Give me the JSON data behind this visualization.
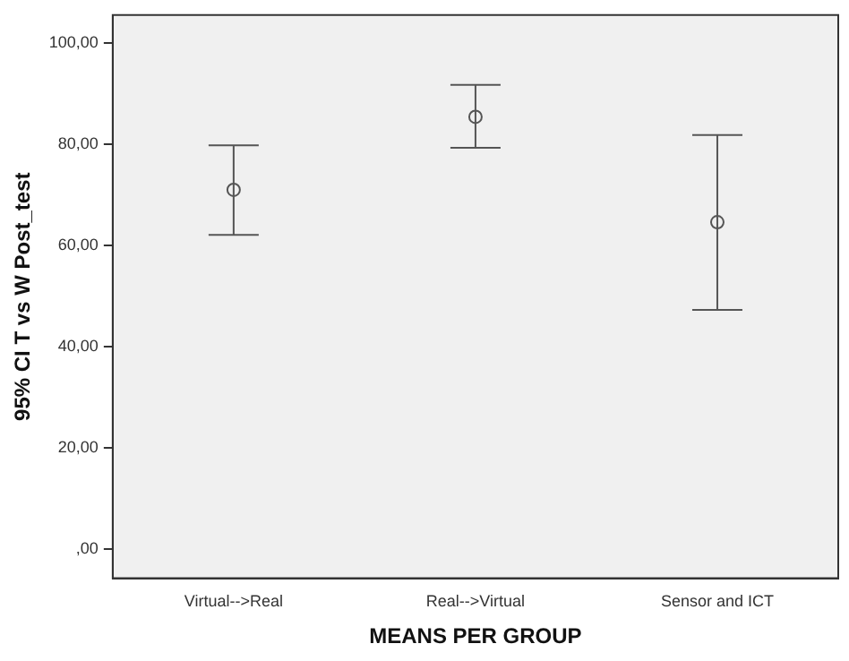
{
  "chart_data": {
    "type": "scatter",
    "xlabel": "MEANS PER GROUP",
    "ylabel": "95% CI T vs W Post_test",
    "categories": [
      "Virtual-->Real",
      "Real-->Virtual",
      "Sensor and ICT"
    ],
    "values": [
      71.0,
      85.4,
      64.6
    ],
    "errors": [
      [
        62.1,
        79.8
      ],
      [
        79.3,
        91.7
      ],
      [
        47.3,
        81.8
      ]
    ],
    "color": "#555555",
    "marker": "circle",
    "grid": false,
    "legend": false,
    "ylim": [
      -5.7,
      105.5
    ],
    "yticks": [
      {
        "value": 0,
        "label": ",00"
      },
      {
        "value": 20,
        "label": "20,00"
      },
      {
        "value": 40,
        "label": "40,00"
      },
      {
        "value": 60,
        "label": "60,00"
      },
      {
        "value": 80,
        "label": "80,00"
      },
      {
        "value": 100,
        "label": "100,00"
      }
    ]
  }
}
